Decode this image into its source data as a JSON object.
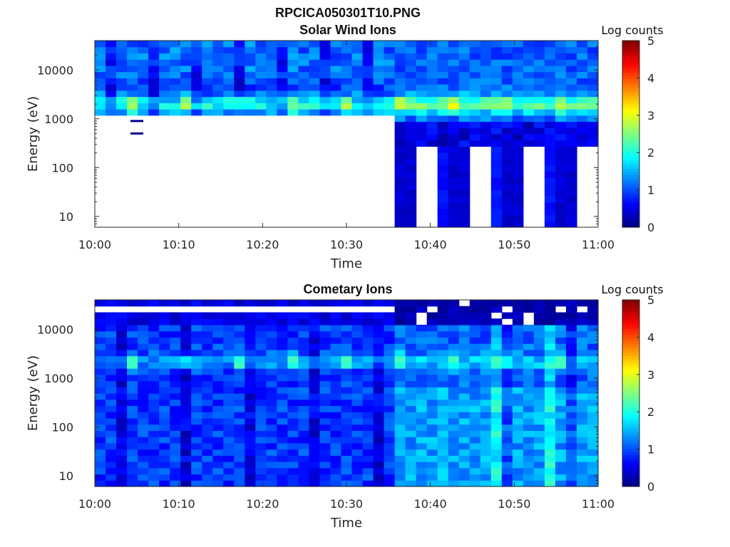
{
  "figure": {
    "title": "RPCICA050301T10.PNG"
  },
  "chart_data": [
    {
      "type": "heatmap",
      "title": "Solar Wind Ions",
      "xlabel": "Time",
      "ylabel": "Energy (eV)",
      "x_tick_labels": [
        "10:00",
        "10:10",
        "10:20",
        "10:30",
        "10:40",
        "10:50",
        "11:00"
      ],
      "y_tick_labels": [
        "10",
        "100",
        "1000",
        "10000"
      ],
      "y_tick_values": [
        10,
        100,
        1000,
        10000
      ],
      "x_range": [
        "10:00",
        "11:00"
      ],
      "y_range": [
        6,
        40000
      ],
      "y_scale": "log",
      "colorbar": {
        "label": "Log counts",
        "range": [
          0,
          5
        ],
        "tick_labels": [
          "0",
          "1",
          "2",
          "3",
          "4",
          "5"
        ],
        "colormap": "jet"
      },
      "observations": [
        "10:00-10:35: counts only above ~1200 eV; peak ~2 log counts near 2000 eV",
        "After 10:35: signal extends down to lowest energies in alternating columns; upper band ~2.5 log counts near 2000 eV",
        "Isolated low-count marks near 10:05 at ~900 eV and ~500 eV"
      ]
    },
    {
      "type": "heatmap",
      "title": "Cometary Ions",
      "xlabel": "Time",
      "ylabel": "Energy (eV)",
      "x_tick_labels": [
        "10:00",
        "10:10",
        "10:20",
        "10:30",
        "10:40",
        "10:50",
        "11:00"
      ],
      "y_tick_labels": [
        "10",
        "100",
        "1000",
        "10000"
      ],
      "y_tick_values": [
        10,
        100,
        1000,
        10000
      ],
      "x_range": [
        "10:00",
        "11:00"
      ],
      "y_range": [
        6,
        40000
      ],
      "y_scale": "log",
      "colorbar": {
        "label": "Log counts",
        "range": [
          0,
          5
        ],
        "tick_labels": [
          "0",
          "1",
          "2",
          "3",
          "4",
          "5"
        ],
        "colormap": "jet"
      },
      "observations": [
        "Broad low-level counts (~0.5-1.5) across all energies",
        "Brighter band ~2 log counts near 2000 eV at regular intervals",
        "Increase to ~1.8 log counts at lowest energies after 10:35",
        "Data gaps (white) above ~12000 eV"
      ]
    }
  ]
}
